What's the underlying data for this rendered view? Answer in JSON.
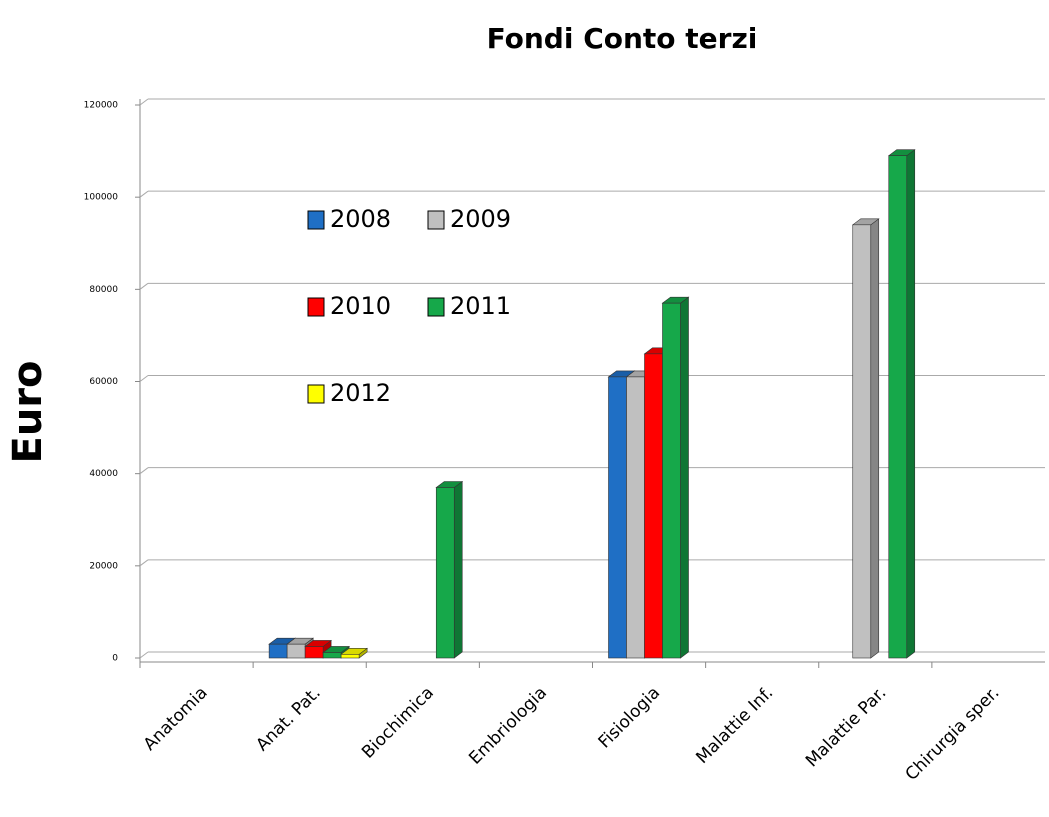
{
  "chart_data": {
    "type": "bar3d",
    "title": "Fondi Conto terzi",
    "y_label": "Euro",
    "categories": [
      "Anatomia",
      "Anat. Pat.",
      "Biochimica",
      "Embriologia",
      "Fisiologia",
      "Malattie Inf.",
      "Malattie Par.",
      "Chirurgia sper."
    ],
    "series": [
      {
        "name": "2008",
        "color": "#1f6fc5",
        "values": [
          0,
          3000,
          0,
          0,
          61000,
          0,
          0,
          0
        ]
      },
      {
        "name": "2009",
        "color": "#c0c0c0",
        "values": [
          0,
          3000,
          0,
          0,
          61000,
          0,
          94000,
          0
        ]
      },
      {
        "name": "2010",
        "color": "#ff0000",
        "values": [
          0,
          2500,
          0,
          0,
          66000,
          0,
          0,
          0
        ]
      },
      {
        "name": "2011",
        "color": "#16a84a",
        "values": [
          0,
          1200,
          37000,
          0,
          77000,
          0,
          109000,
          0
        ]
      },
      {
        "name": "2012",
        "color": "#ffff00",
        "values": [
          0,
          800,
          0,
          0,
          0,
          0,
          0,
          0
        ]
      }
    ],
    "ylim": [
      0,
      120000
    ],
    "yticks": [
      0,
      20000,
      40000,
      60000,
      80000,
      100000,
      120000
    ],
    "grid": true
  }
}
